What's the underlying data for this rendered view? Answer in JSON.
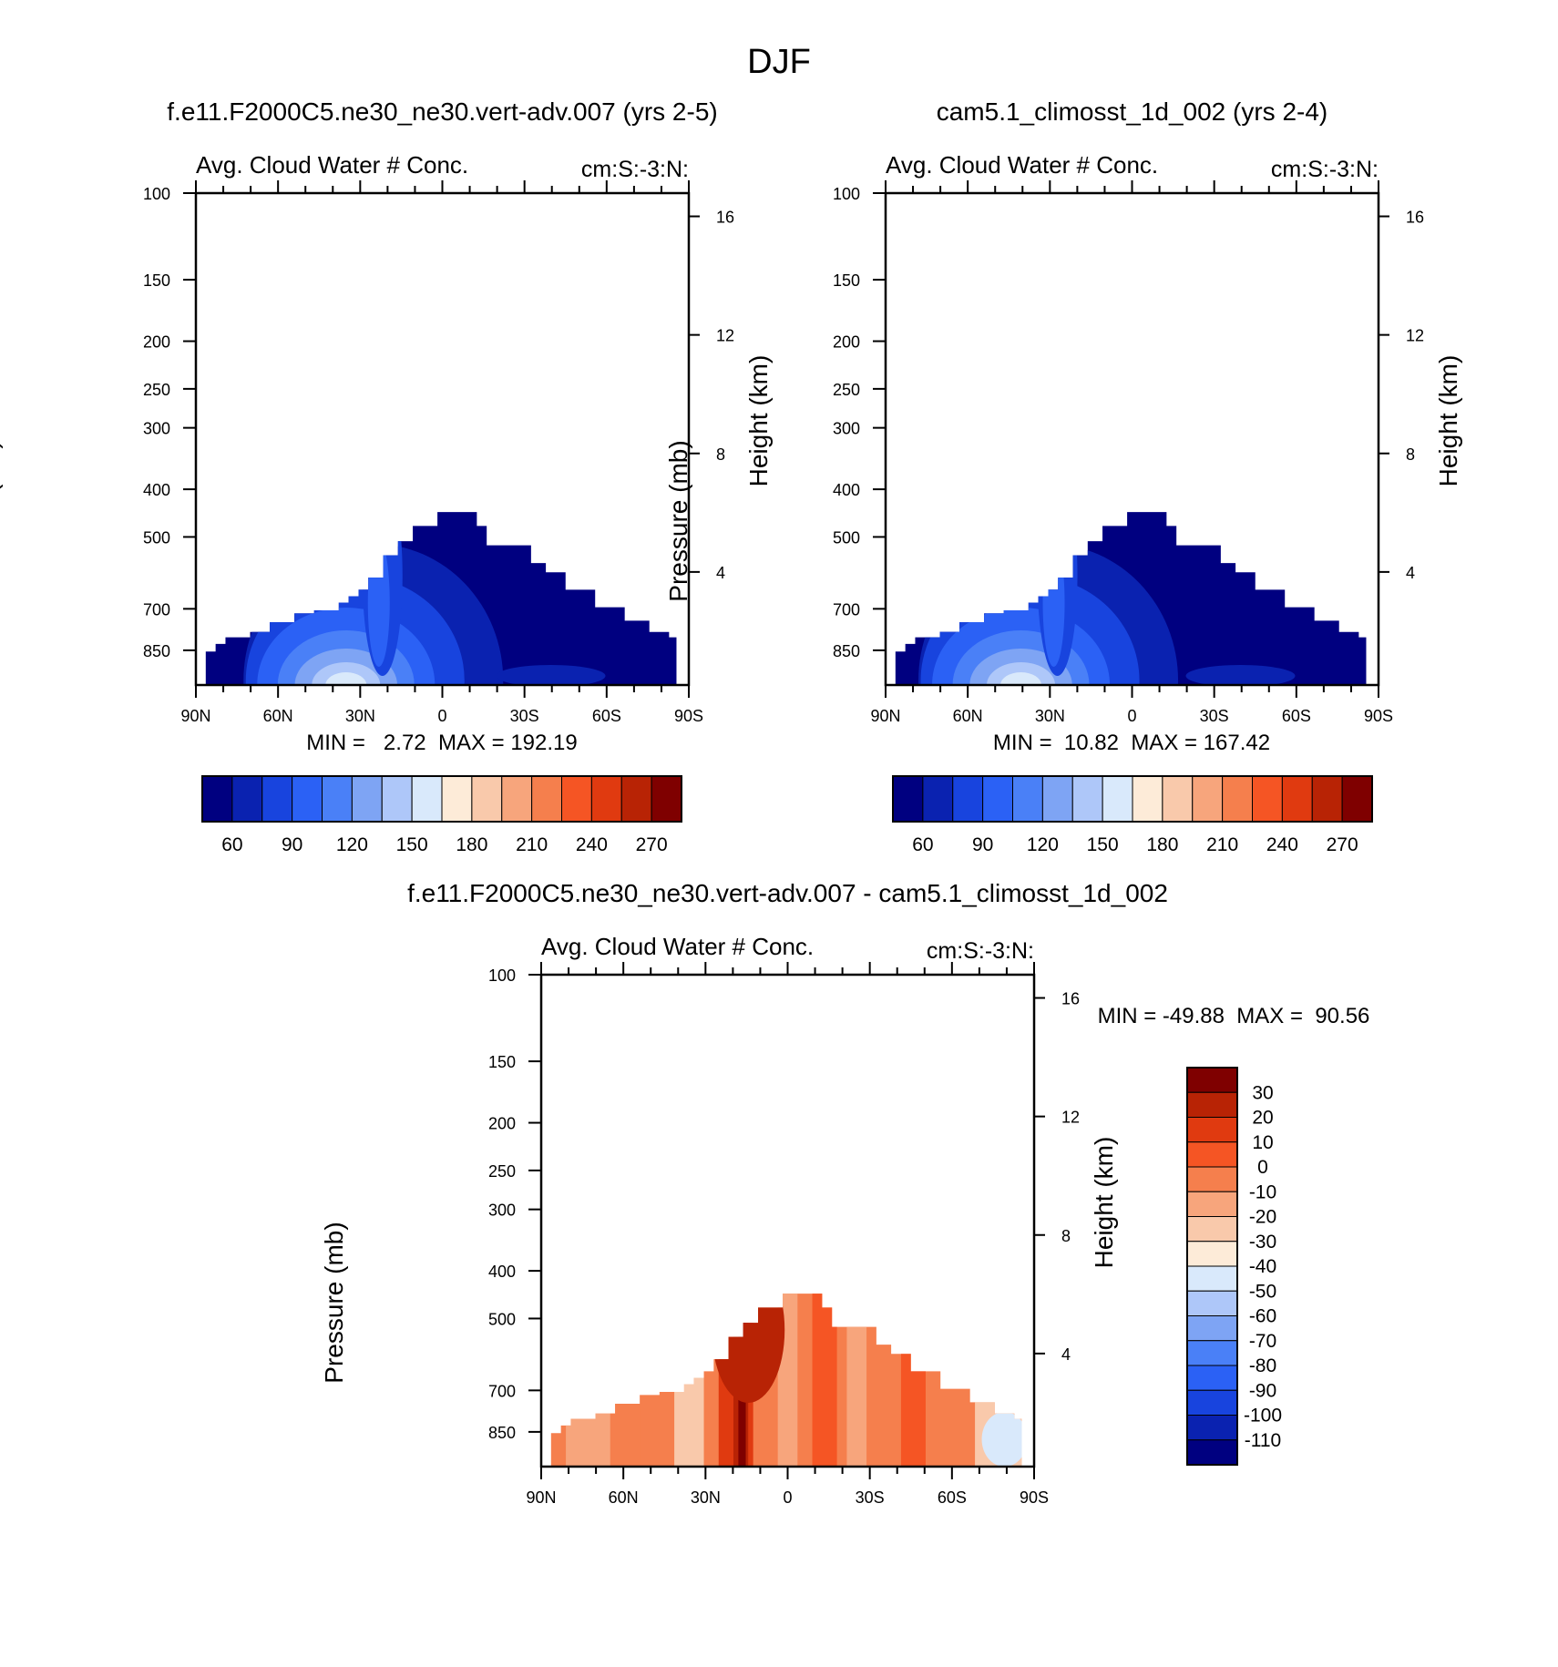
{
  "main_title": "DJF",
  "axes_common": {
    "pressure_label": "Pressure (mb)",
    "height_label": "Height (km)",
    "pressure_ticks": [
      "100",
      "150",
      "200",
      "250",
      "300",
      "400",
      "500",
      "700",
      "850"
    ],
    "height_ticks": [
      "16",
      "12",
      "8",
      "4"
    ],
    "lat_ticks": [
      "90N",
      "60N",
      "30N",
      "0",
      "30S",
      "60S",
      "90S"
    ],
    "diff_lat_ticks": [
      "90N",
      "60N",
      "30N",
      "0",
      "30S",
      "60S",
      "90S"
    ]
  },
  "panels": [
    {
      "case_title": "f.e11.F2000C5.ne30_ne30.vert-adv.007 (yrs 2-5)",
      "var_label": "Avg. Cloud Water # Conc.",
      "units_label": "cm:S:-3:N:",
      "minmax": "MIN =   2.72  MAX = 192.19"
    },
    {
      "case_title": "cam5.1_climosst_1d_002 (yrs 2-4)",
      "var_label": "Avg. Cloud Water # Conc.",
      "units_label": "cm:S:-3:N:",
      "minmax": "MIN =  10.82  MAX = 167.42"
    },
    {
      "case_title": "f.e11.F2000C5.ne30_ne30.vert-adv.007 - cam5.1_climosst_1d_002",
      "var_label": "Avg. Cloud Water # Conc.",
      "units_label": "cm:S:-3:N:",
      "minmax": "MIN = -49.88  MAX =  90.56"
    }
  ],
  "colorbar_top": {
    "labels": [
      "60",
      "90",
      "120",
      "150",
      "180",
      "210",
      "240",
      "270"
    ],
    "colors": [
      "#000080",
      "#0a22b0",
      "#1844de",
      "#2b61f5",
      "#4a80f7",
      "#7ea4f4",
      "#aec7f9",
      "#d9e9fb",
      "#fdebd8",
      "#f9c9ab",
      "#f7a57c",
      "#f57f4d",
      "#f55524",
      "#e03a10",
      "#b82305",
      "#7f0000"
    ]
  },
  "colorbar_diff": {
    "labels": [
      "30",
      "20",
      "10",
      "0",
      "-10",
      "-20",
      "-30",
      "-40",
      "-50",
      "-60",
      "-70",
      "-80",
      "-90",
      "-100",
      "-110"
    ],
    "colors": [
      "#7f0000",
      "#b82305",
      "#e03a10",
      "#f55524",
      "#f57f4d",
      "#f7a57c",
      "#f9c9ab",
      "#fdebd8",
      "#d9e9fb",
      "#aec7f9",
      "#7ea4f4",
      "#4a80f7",
      "#2b61f5",
      "#1844de",
      "#0a22b0",
      "#000080"
    ]
  },
  "chart_data": [
    {
      "type": "heatmap",
      "title": "f.e11.F2000C5.ne30_ne30.vert-adv.007 (yrs 2-5)",
      "subtitle": "Avg. Cloud Water # Conc.",
      "units": "cm:S:-3:N:",
      "xlabel": "",
      "ylabel": "Pressure (mb)",
      "ylabel_right": "Height (km)",
      "x_ticks": [
        "90N",
        "60N",
        "30N",
        "0",
        "30S",
        "60S",
        "90S"
      ],
      "y_ticks": [
        100,
        150,
        200,
        250,
        300,
        400,
        500,
        700,
        850
      ],
      "y_log_scale": true,
      "ylim": [
        100,
        1000
      ],
      "min": 2.72,
      "max": 192.19,
      "contour_levels": [
        60,
        90,
        120,
        150,
        180,
        210,
        240,
        270
      ]
    },
    {
      "type": "heatmap",
      "title": "cam5.1_climosst_1d_002 (yrs 2-4)",
      "subtitle": "Avg. Cloud Water # Conc.",
      "units": "cm:S:-3:N:",
      "ylabel": "Pressure (mb)",
      "ylabel_right": "Height (km)",
      "x_ticks": [
        "90N",
        "60N",
        "30N",
        "0",
        "30S",
        "60S",
        "90S"
      ],
      "y_ticks": [
        100,
        150,
        200,
        250,
        300,
        400,
        500,
        700,
        850
      ],
      "y_log_scale": true,
      "ylim": [
        100,
        1000
      ],
      "min": 10.82,
      "max": 167.42,
      "contour_levels": [
        60,
        90,
        120,
        150,
        180,
        210,
        240,
        270
      ]
    },
    {
      "type": "heatmap",
      "title": "f.e11.F2000C5.ne30_ne30.vert-adv.007 - cam5.1_climosst_1d_002",
      "subtitle": "Avg. Cloud Water # Conc.",
      "units": "cm:S:-3:N:",
      "ylabel": "Pressure (mb)",
      "ylabel_right": "Height (km)",
      "x_ticks": [
        "90N",
        "60N",
        "30N",
        "0",
        "30S",
        "60S",
        "90S"
      ],
      "y_ticks": [
        100,
        150,
        200,
        250,
        300,
        400,
        500,
        700,
        850
      ],
      "y_log_scale": true,
      "ylim": [
        100,
        1000
      ],
      "min": -49.88,
      "max": 90.56,
      "contour_levels": [
        -110,
        -100,
        -90,
        -80,
        -70,
        -60,
        -50,
        -40,
        -30,
        -20,
        -10,
        0,
        10,
        20,
        30
      ]
    }
  ]
}
